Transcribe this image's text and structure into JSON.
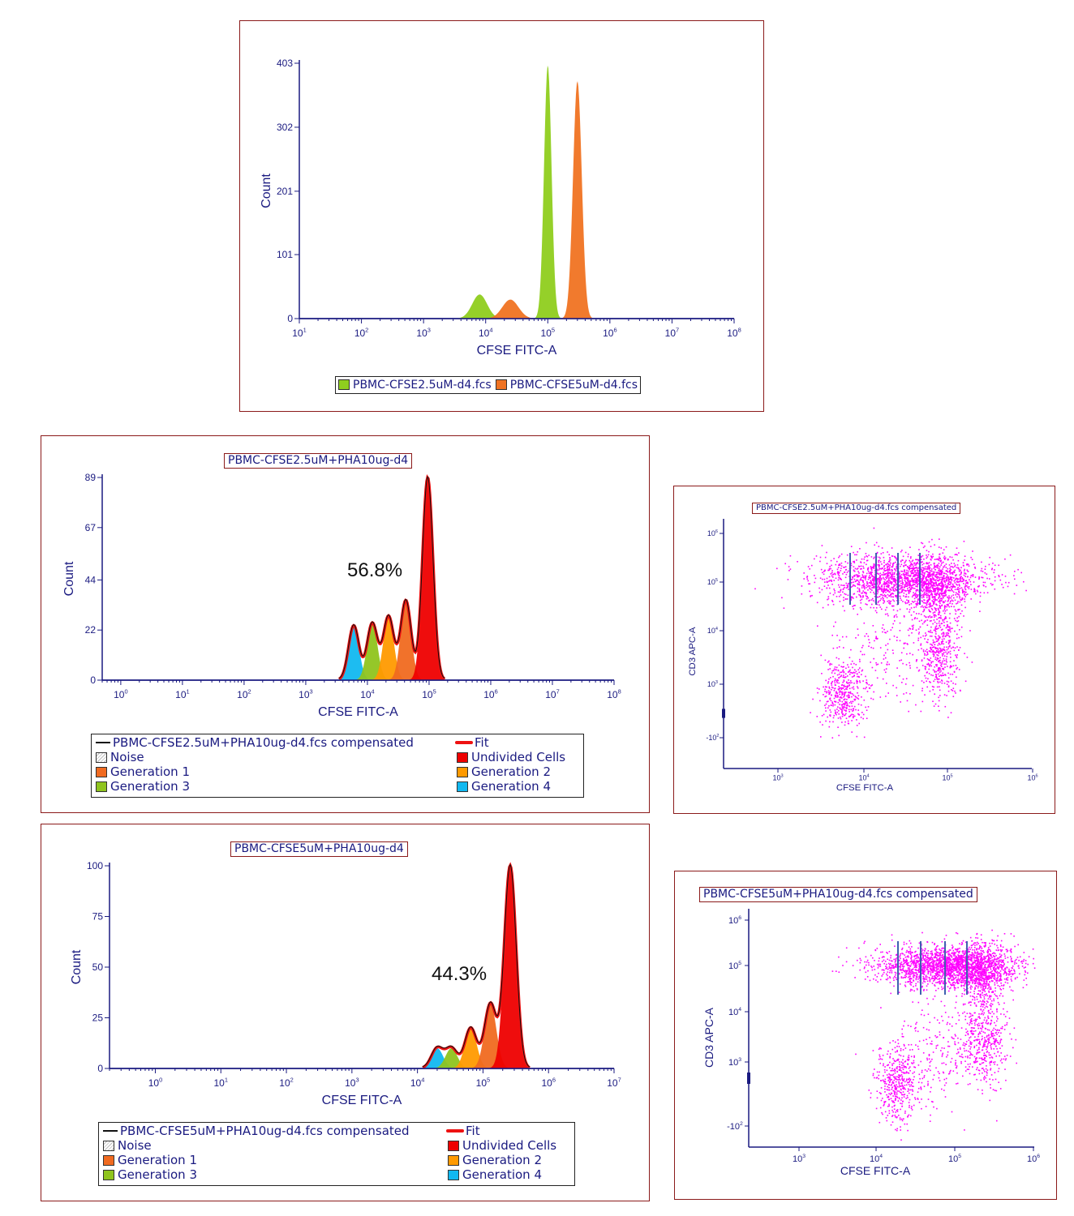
{
  "colors": {
    "nav": "#1a1a80",
    "frame": "#8b1a1a",
    "fit": "#ee1111",
    "green": "#8fce1e",
    "orange": "#f07322",
    "red": "#ee0000",
    "gen1": "#f06a20",
    "gen2": "#ff9a00",
    "gen3": "#8fc41e",
    "gen4": "#11b8f0",
    "dots": "#ff00ff",
    "gate": "#4060b0"
  },
  "panel1": {
    "legend": [
      "PBMC-CFSE2.5uM-d4.fcs",
      "PBMC-CFSE5uM-d4.fcs"
    ]
  },
  "panel2": {
    "title": "PBMC-CFSE2.5uM+PHA10ug-d4",
    "percent": "56.8%",
    "legend": {
      "sample": "PBMC-CFSE2.5uM+PHA10ug-d4.fcs compensated",
      "fit": "Fit",
      "noise": "Noise",
      "undivided": "Undivided Cells",
      "gen1": "Generation 1",
      "gen2": "Generation 2",
      "gen3": "Generation 3",
      "gen4": "Generation 4"
    }
  },
  "panel3": {
    "title": "PBMC-CFSE5uM+PHA10ug-d4",
    "percent": "44.3%",
    "legend": {
      "sample": "PBMC-CFSE5uM+PHA10ug-d4.fcs compensated",
      "fit": "Fit",
      "noise": "Noise",
      "undivided": "Undivided Cells",
      "gen1": "Generation 1",
      "gen2": "Generation 2",
      "gen3": "Generation 3",
      "gen4": "Generation 4"
    }
  },
  "panel4": {
    "title": "PBMC-CFSE2.5uM+PHA10ug-d4.fcs compensated"
  },
  "panel5": {
    "title": "PBMC-CFSE5uM+PHA10ug-d4.fcs compensated"
  },
  "chart_data": [
    {
      "type": "area",
      "xlabel": "CFSE FITC-A",
      "ylabel": "Count",
      "xscale": "log",
      "xlim": [
        10,
        100000000
      ],
      "ylim": [
        0,
        403
      ],
      "yticks": [
        0,
        101,
        201,
        302,
        403
      ],
      "xticks": [
        {
          "b": "10",
          "e": "1"
        },
        {
          "b": "10",
          "e": "2"
        },
        {
          "b": "10",
          "e": "3"
        },
        {
          "b": "10",
          "e": "4"
        },
        {
          "b": "10",
          "e": "5"
        },
        {
          "b": "10",
          "e": "6"
        },
        {
          "b": "10",
          "e": "7"
        },
        {
          "b": "10",
          "e": "8"
        }
      ],
      "series": [
        {
          "name": "PBMC-CFSE2.5uM-d4.fcs",
          "peaks": [
            {
              "x": 8000,
              "y": 38
            },
            {
              "x": 100000,
              "y": 400
            }
          ]
        },
        {
          "name": "PBMC-CFSE5uM-d4.fcs",
          "peaks": [
            {
              "x": 25000,
              "y": 30
            },
            {
              "x": 300000,
              "y": 375
            }
          ]
        }
      ]
    },
    {
      "type": "area",
      "xlabel": "CFSE FITC-A",
      "ylabel": "Count",
      "xscale": "log",
      "xlim": [
        0.5,
        100000000
      ],
      "ylim": [
        0,
        89
      ],
      "yticks": [
        0,
        22,
        44,
        67,
        89
      ],
      "xticks": [
        {
          "b": "10",
          "e": "0"
        },
        {
          "b": "10",
          "e": "1"
        },
        {
          "b": "10",
          "e": "2"
        },
        {
          "b": "10",
          "e": "3"
        },
        {
          "b": "10",
          "e": "4"
        },
        {
          "b": "10",
          "e": "5"
        },
        {
          "b": "10",
          "e": "6"
        },
        {
          "b": "10",
          "e": "7"
        },
        {
          "b": "10",
          "e": "8"
        }
      ],
      "peaks": [
        {
          "name": "Generation 4",
          "x": 6000,
          "y": 24
        },
        {
          "name": "Generation 3",
          "x": 12000,
          "y": 25
        },
        {
          "name": "Generation 2",
          "x": 22000,
          "y": 28
        },
        {
          "name": "Generation 1",
          "x": 42000,
          "y": 35
        },
        {
          "name": "Undivided Cells",
          "x": 95000,
          "y": 89
        }
      ],
      "annotation": "56.8%"
    },
    {
      "type": "area",
      "xlabel": "CFSE FITC-A",
      "ylabel": "Count",
      "xscale": "log",
      "xlim": [
        0.2,
        10000000
      ],
      "ylim": [
        0,
        100
      ],
      "yticks": [
        0,
        25,
        50,
        75,
        100
      ],
      "xticks": [
        {
          "b": "10",
          "e": "0"
        },
        {
          "b": "10",
          "e": "1"
        },
        {
          "b": "10",
          "e": "2"
        },
        {
          "b": "10",
          "e": "3"
        },
        {
          "b": "10",
          "e": "4"
        },
        {
          "b": "10",
          "e": "5"
        },
        {
          "b": "10",
          "e": "6"
        },
        {
          "b": "10",
          "e": "7"
        }
      ],
      "peaks": [
        {
          "name": "Generation 4",
          "x": 20000,
          "y": 10
        },
        {
          "name": "Generation 3",
          "x": 33000,
          "y": 10
        },
        {
          "name": "Generation 2",
          "x": 65000,
          "y": 20
        },
        {
          "name": "Generation 1",
          "x": 130000,
          "y": 32
        },
        {
          "name": "Undivided Cells",
          "x": 260000,
          "y": 100
        }
      ],
      "annotation": "44.3%"
    },
    {
      "type": "scatter",
      "xlabel": "CFSE FITC-A",
      "ylabel": "CD3 APC-A",
      "xscale": "log",
      "yscale": "log",
      "xticks": [
        {
          "b": "10",
          "e": "3"
        },
        {
          "b": "10",
          "e": "4"
        },
        {
          "b": "10",
          "e": "5"
        },
        {
          "b": "10",
          "e": "6"
        }
      ],
      "yticks": [
        {
          "b": "-10",
          "e": "2"
        },
        {
          "b": "10",
          "e": "3"
        },
        {
          "b": "10",
          "e": "4"
        },
        {
          "b": "10",
          "e": "5"
        },
        {
          "b": "10",
          "e": "6"
        }
      ],
      "gates_x": [
        7000,
        14000,
        25000,
        48000
      ]
    },
    {
      "type": "scatter",
      "xlabel": "CFSE FITC-A",
      "ylabel": "CD3 APC-A",
      "xscale": "log",
      "yscale": "log",
      "xticks": [
        {
          "b": "10",
          "e": "3"
        },
        {
          "b": "10",
          "e": "4"
        },
        {
          "b": "10",
          "e": "5"
        },
        {
          "b": "10",
          "e": "6"
        }
      ],
      "yticks": [
        {
          "b": "-10",
          "e": "2"
        },
        {
          "b": "10",
          "e": "3"
        },
        {
          "b": "10",
          "e": "4"
        },
        {
          "b": "10",
          "e": "5"
        },
        {
          "b": "10",
          "e": "6"
        }
      ],
      "gates_x": [
        20000,
        38000,
        72000,
        140000
      ]
    }
  ]
}
